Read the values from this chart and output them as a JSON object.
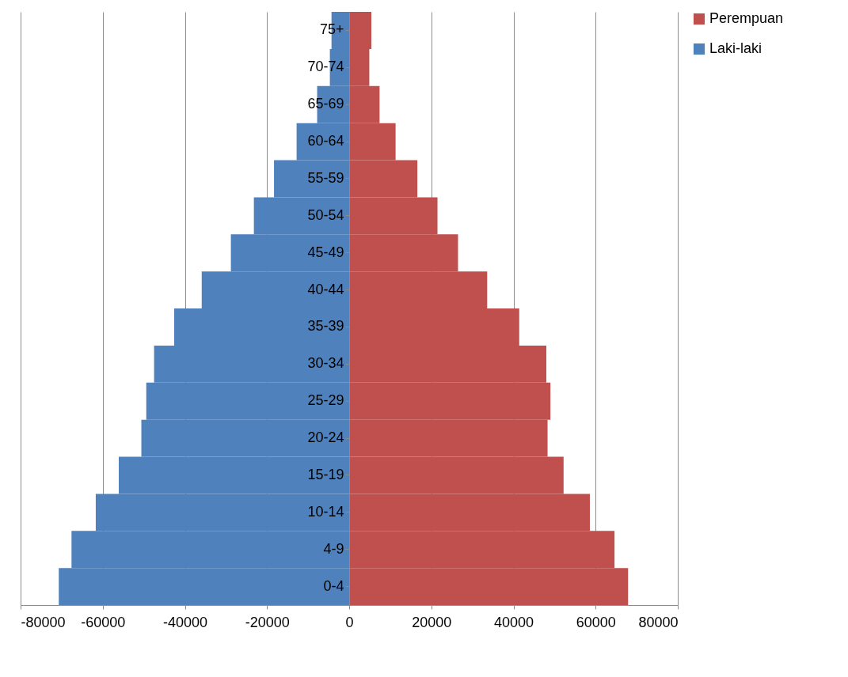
{
  "chart_data": {
    "type": "bar",
    "orientation": "horizontal",
    "stacked": true,
    "categories": [
      "75+",
      "70-74",
      "65-69",
      "60-64",
      "55-59",
      "50-54",
      "45-49",
      "40-44",
      "35-39",
      "30-34",
      "25-29",
      "20-24",
      "15-19",
      "10-14",
      "4-9",
      "0-4"
    ],
    "series": [
      {
        "name": "Perempuan",
        "color": "#c0504d",
        "values": [
          5400,
          4900,
          7400,
          11300,
          16600,
          21500,
          26500,
          33600,
          41400,
          48000,
          49000,
          48300,
          52200,
          58600,
          64600,
          67900
        ]
      },
      {
        "name": "Laki-laki",
        "color": "#4f81bd",
        "values": [
          -4300,
          -4700,
          -7800,
          -12800,
          -18300,
          -23200,
          -28800,
          -35900,
          -42600,
          -47500,
          -49400,
          -50600,
          -56100,
          -61700,
          -67600,
          -70700
        ]
      }
    ],
    "xlim": [
      -80000,
      80000
    ],
    "xticks": [
      -80000,
      -60000,
      -40000,
      -20000,
      0,
      20000,
      40000,
      60000,
      80000
    ],
    "grid": "x",
    "legend": "right"
  }
}
